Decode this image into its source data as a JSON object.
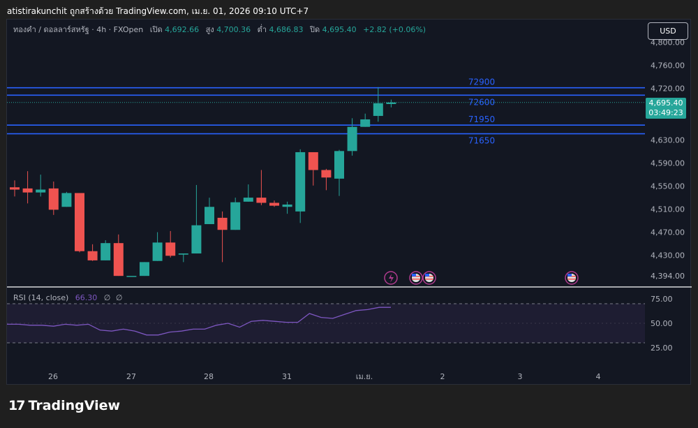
{
  "header": {
    "text": "atistirakunchit ถูกสร้างด้วย TradingView.com, เม.ย. 01, 2026 09:10 UTC+7"
  },
  "legend": {
    "symbol": "ทองคำ / ดอลลาร์สหรัฐ · 4h · FXOpen",
    "open_label": "เปิด",
    "open": "4,692.66",
    "high_label": "สูง",
    "high": "4,700.36",
    "low_label": "ต่ำ",
    "low": "4,686.83",
    "close_label": "ปิด",
    "close": "4,695.40",
    "change": "+2.82 (+0.06%)"
  },
  "currency_button": "USD",
  "price_tag": {
    "price": "4,695.40",
    "countdown": "03:49:23"
  },
  "colors": {
    "up": "#26a69a",
    "down": "#ef5350",
    "level_line": "#2962ff",
    "rsi": "#7e57c2",
    "background": "#131722"
  },
  "chart_data": [
    {
      "type": "candlestick",
      "title": "ทองคำ / ดอลลาร์สหรัฐ · 4h · FXOpen",
      "y_axis_labels": [
        "4,800.00",
        "4,760.00",
        "4,720.00",
        "4,630.00",
        "4,590.00",
        "4,550.00",
        "4,510.00",
        "4,470.00",
        "4,430.00",
        "4,394.00"
      ],
      "x_axis_labels": [
        "26",
        "27",
        "28",
        "31",
        "เม.ย.",
        "2",
        "3",
        "4"
      ],
      "horizontal_levels": [
        {
          "label": "72900",
          "value": 4721
        },
        {
          "label": "72600",
          "value": 4708
        },
        {
          "label": "71950",
          "value": 4656
        },
        {
          "label": "71650",
          "value": 4641
        }
      ],
      "current_price": 4695.4,
      "candles": [
        {
          "o": 4548,
          "h": 4560,
          "l": 4532,
          "c": 4544
        },
        {
          "o": 4546,
          "h": 4576,
          "l": 4520,
          "c": 4539
        },
        {
          "o": 4539,
          "h": 4570,
          "l": 4532,
          "c": 4544
        },
        {
          "o": 4546,
          "h": 4558,
          "l": 4500,
          "c": 4509
        },
        {
          "o": 4514,
          "h": 4540,
          "l": 4514,
          "c": 4538
        },
        {
          "o": 4538,
          "h": 4538,
          "l": 4435,
          "c": 4437
        },
        {
          "o": 4437,
          "h": 4449,
          "l": 4420,
          "c": 4421
        },
        {
          "o": 4421,
          "h": 4456,
          "l": 4421,
          "c": 4451
        },
        {
          "o": 4451,
          "h": 4466,
          "l": 4394,
          "c": 4394
        },
        {
          "o": 4394,
          "h": 4394,
          "l": 4394,
          "c": 4394
        },
        {
          "o": 4394,
          "h": 4418,
          "l": 4394,
          "c": 4418
        },
        {
          "o": 4420,
          "h": 4470,
          "l": 4420,
          "c": 4452
        },
        {
          "o": 4452,
          "h": 4472,
          "l": 4426,
          "c": 4429
        },
        {
          "o": 4431,
          "h": 4433,
          "l": 4418,
          "c": 4433
        },
        {
          "o": 4433,
          "h": 4552,
          "l": 4433,
          "c": 4482
        },
        {
          "o": 4484,
          "h": 4530,
          "l": 4484,
          "c": 4514
        },
        {
          "o": 4495,
          "h": 4506,
          "l": 4418,
          "c": 4474
        },
        {
          "o": 4474,
          "h": 4530,
          "l": 4474,
          "c": 4522
        },
        {
          "o": 4523,
          "h": 4553,
          "l": 4523,
          "c": 4530
        },
        {
          "o": 4530,
          "h": 4578,
          "l": 4517,
          "c": 4521
        },
        {
          "o": 4521,
          "h": 4525,
          "l": 4514,
          "c": 4516
        },
        {
          "o": 4514,
          "h": 4523,
          "l": 4502,
          "c": 4518
        },
        {
          "o": 4506,
          "h": 4614,
          "l": 4486,
          "c": 4609
        },
        {
          "o": 4609,
          "h": 4609,
          "l": 4551,
          "c": 4578
        },
        {
          "o": 4578,
          "h": 4580,
          "l": 4543,
          "c": 4565
        },
        {
          "o": 4563,
          "h": 4613,
          "l": 4533,
          "c": 4611
        },
        {
          "o": 4611,
          "h": 4668,
          "l": 4603,
          "c": 4653
        },
        {
          "o": 4653,
          "h": 4676,
          "l": 4653,
          "c": 4666
        },
        {
          "o": 4672,
          "h": 4722,
          "l": 4662,
          "c": 4694
        },
        {
          "o": 4692.66,
          "h": 4700.36,
          "l": 4686.83,
          "c": 4695.4
        }
      ],
      "event_markers": [
        "lightning",
        "us-flag",
        "us-flag",
        "us-flag"
      ]
    },
    {
      "type": "line",
      "title": "RSI (14, close)",
      "value_label": "66.30",
      "extra_labels": [
        "∅",
        "∅"
      ],
      "y_axis_labels": [
        "75.00",
        "50.00",
        "25.00"
      ],
      "upper_band": 70,
      "lower_band": 30,
      "values": [
        49,
        49,
        48,
        48,
        47,
        49,
        48,
        49,
        43,
        42,
        44,
        42,
        38,
        38,
        41,
        42,
        44,
        44,
        48,
        50,
        46,
        52,
        53,
        52,
        51,
        51,
        60,
        56,
        55,
        59,
        63,
        64,
        66.3,
        66.3
      ]
    }
  ],
  "logo_text": "TradingView"
}
